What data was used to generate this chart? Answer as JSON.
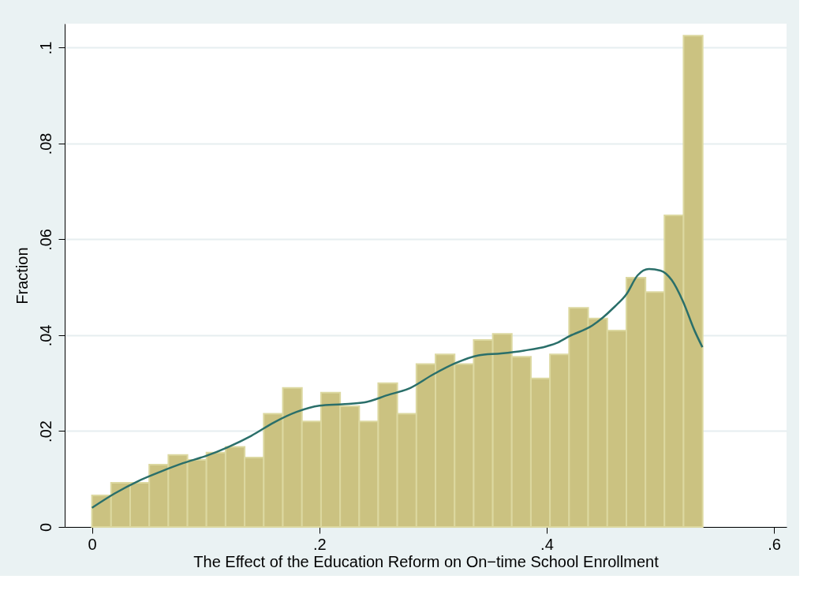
{
  "chart_data": {
    "type": "histogram",
    "xlabel": "The Effect of the Education Reform on On−time School Enrollment",
    "ylabel": "Fraction",
    "bins": [
      0,
      0.0168,
      0.0336,
      0.0504,
      0.0672,
      0.084,
      0.1007,
      0.1175,
      0.1343,
      0.1511,
      0.1679,
      0.1847,
      0.2015,
      0.2183,
      0.2351,
      0.2518,
      0.2686,
      0.2854,
      0.3022,
      0.319,
      0.3358,
      0.3526,
      0.3693,
      0.3861,
      0.4029,
      0.4197,
      0.4365,
      0.4533,
      0.4701,
      0.4869,
      0.5036,
      0.5204,
      0.5372
    ],
    "values": [
      0.0066,
      0.0092,
      0.0092,
      0.013,
      0.015,
      0.014,
      0.0155,
      0.0167,
      0.0145,
      0.0236,
      0.029,
      0.022,
      0.028,
      0.0252,
      0.022,
      0.03,
      0.0236,
      0.034,
      0.036,
      0.034,
      0.039,
      0.0403,
      0.0355,
      0.031,
      0.036,
      0.0457,
      0.0435,
      0.041,
      0.052,
      0.049,
      0.065,
      0.1025
    ],
    "color": "#cbc281",
    "series": [
      {
        "type": "line",
        "color": "#2a6f6a",
        "x": [
          0,
          0.02,
          0.04,
          0.06,
          0.08,
          0.1,
          0.12,
          0.14,
          0.16,
          0.18,
          0.2,
          0.22,
          0.24,
          0.26,
          0.28,
          0.3,
          0.32,
          0.34,
          0.36,
          0.38,
          0.4,
          0.41,
          0.42,
          0.44,
          0.46,
          0.47,
          0.48,
          0.49,
          0.5,
          0.51,
          0.52,
          0.53,
          0.537
        ],
        "values": [
          0.004,
          0.007,
          0.0095,
          0.0115,
          0.0133,
          0.0148,
          0.0167,
          0.019,
          0.0218,
          0.024,
          0.0253,
          0.0256,
          0.026,
          0.0275,
          0.029,
          0.0318,
          0.0342,
          0.0358,
          0.0362,
          0.0368,
          0.0377,
          0.0385,
          0.0398,
          0.042,
          0.046,
          0.0485,
          0.0525,
          0.0538,
          0.0535,
          0.0515,
          0.047,
          0.041,
          0.0375
        ]
      }
    ],
    "xlim": [
      -0.024,
      0.611
    ],
    "xticks": [
      0,
      {
        "value": 0.2,
        "label": ".2"
      },
      {
        "value": 0.4,
        "label": ".4"
      },
      {
        "value": 0.6,
        "label": ".6"
      }
    ],
    "ylim": [
      0,
      0.105
    ],
    "yticks": [
      0,
      {
        "value": 0.02,
        "label": ".02"
      },
      {
        "value": 0.04,
        "label": ".04"
      },
      {
        "value": 0.06,
        "label": ".06"
      },
      {
        "value": 0.08,
        "label": ".08"
      },
      {
        "value": 0.1,
        "label": ".1"
      }
    ],
    "grid": "y"
  }
}
